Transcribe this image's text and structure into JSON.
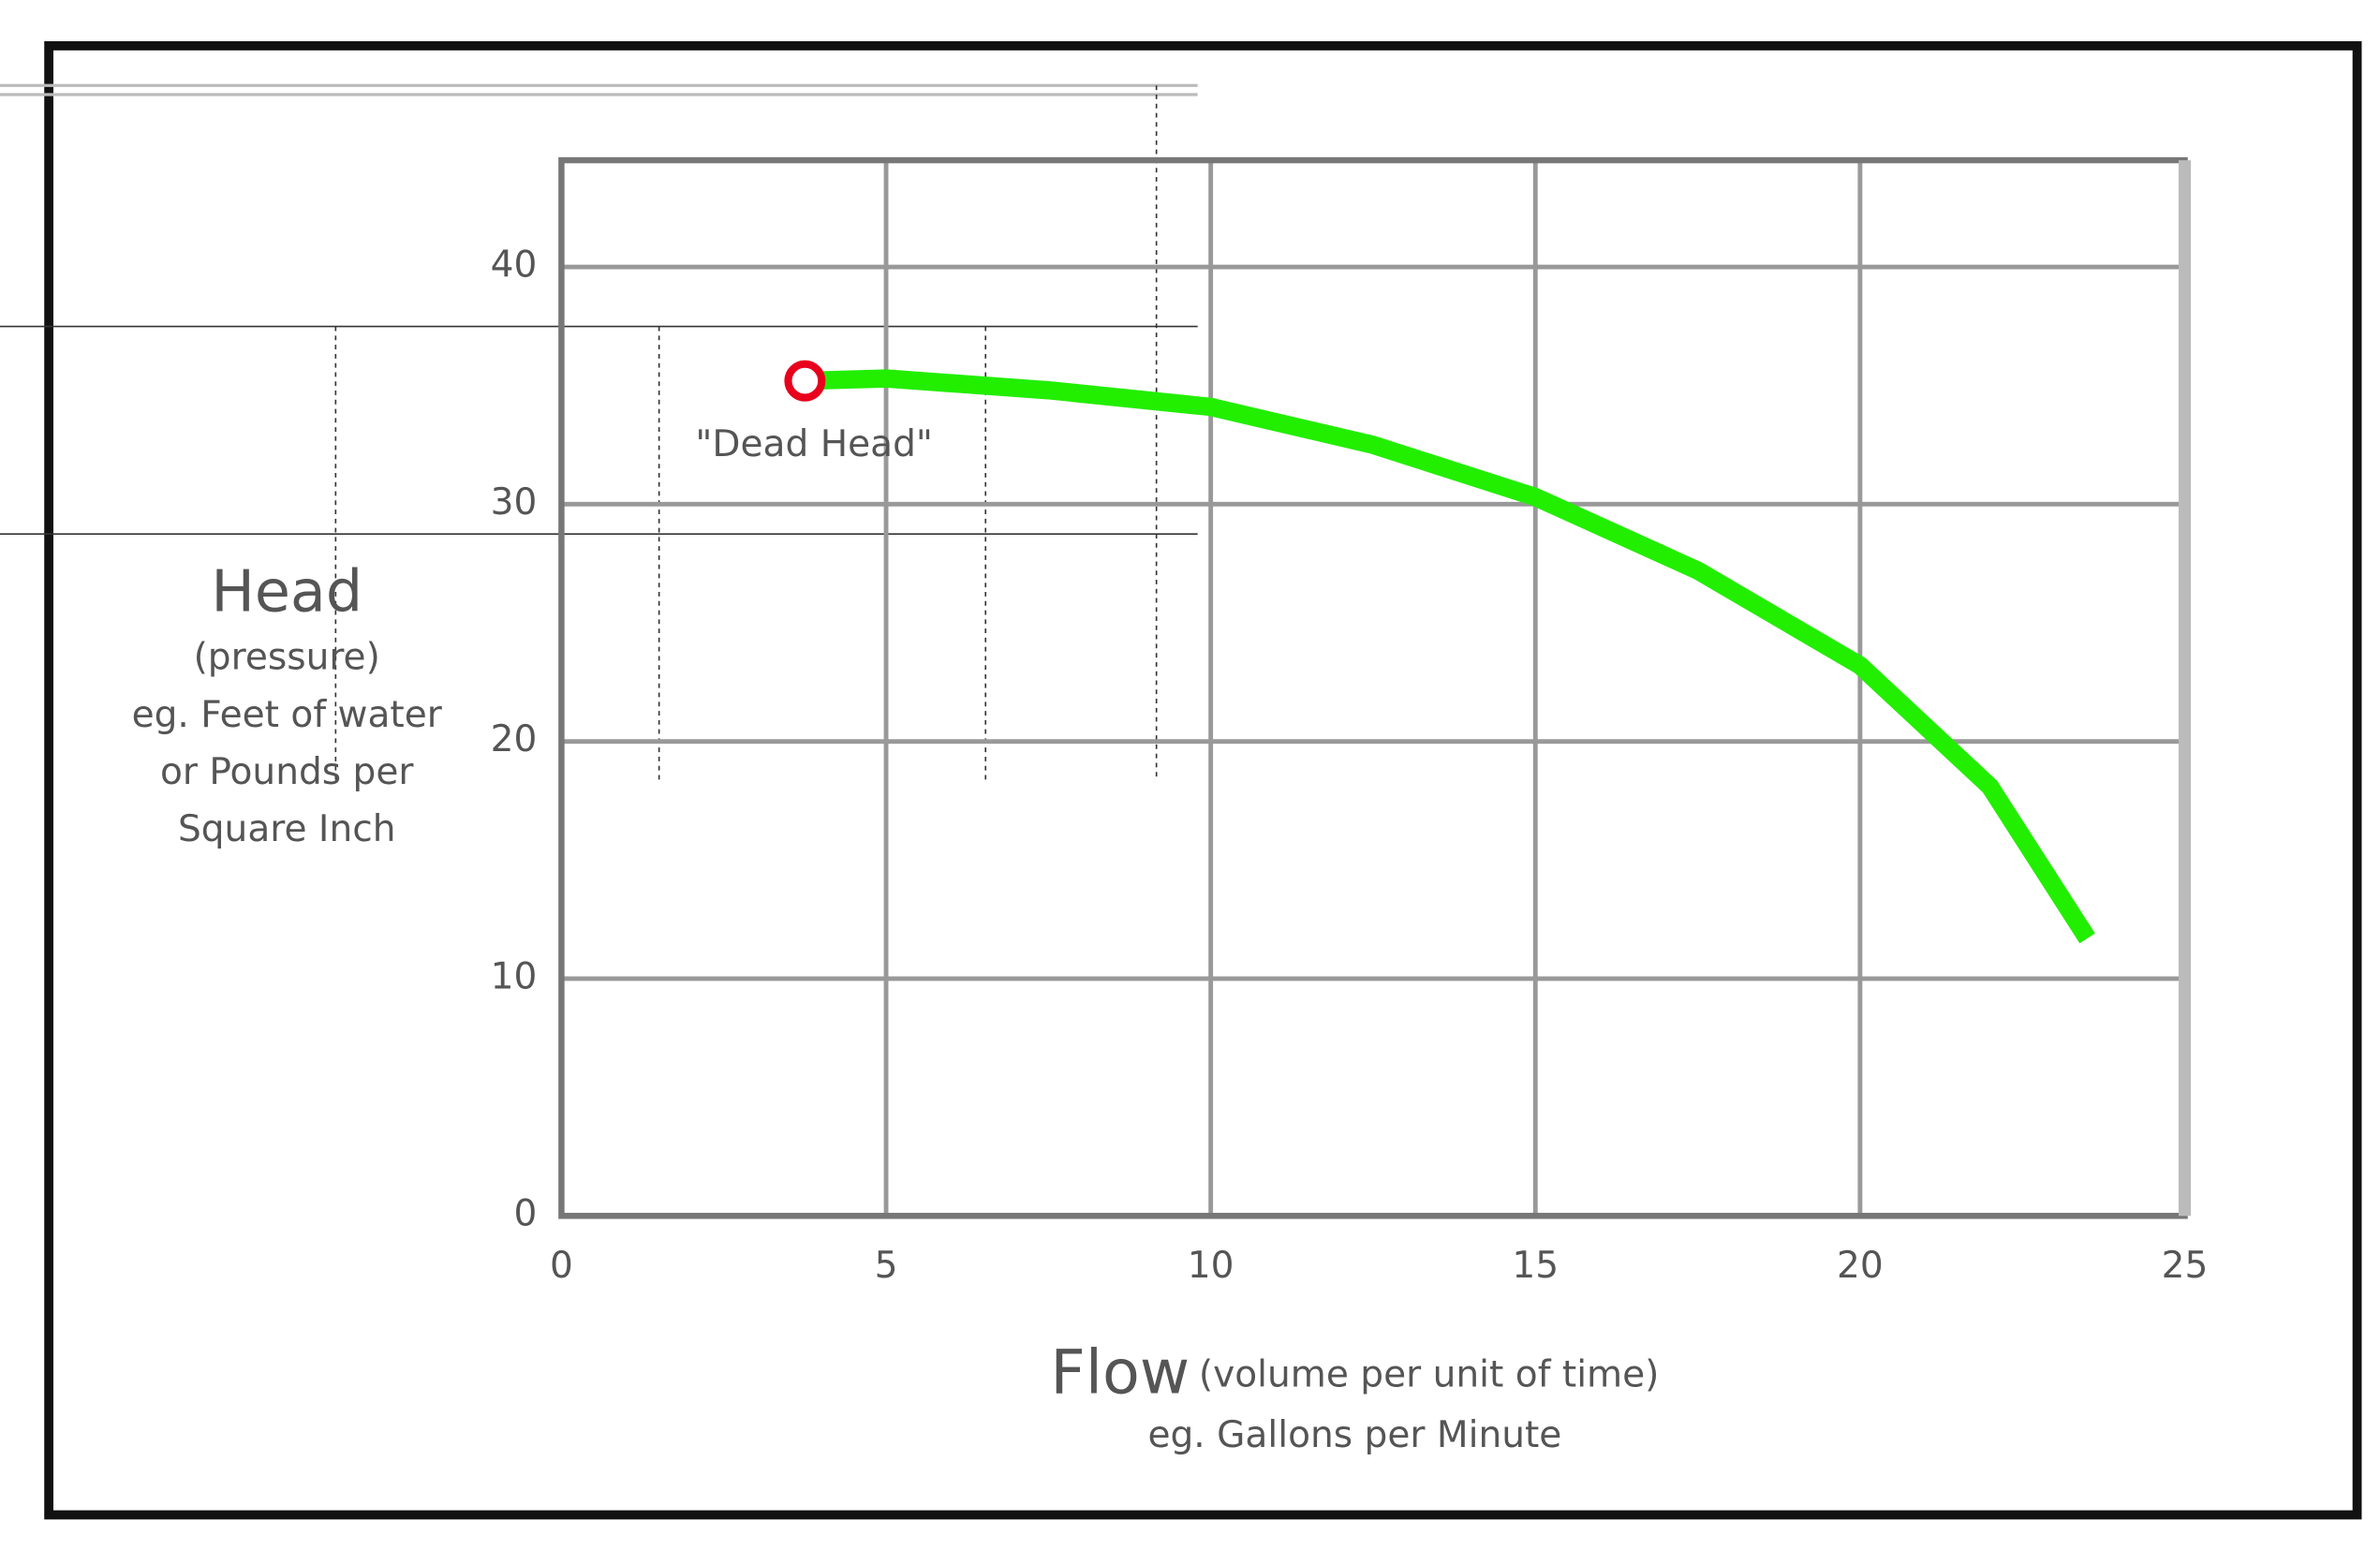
{
  "chart_data": {
    "type": "line",
    "x": [
      3.75,
      5,
      7.5,
      10,
      12.5,
      15,
      17.5,
      20,
      22,
      23.5
    ],
    "values": [
      35.2,
      35.3,
      34.8,
      34.1,
      32.5,
      30.3,
      27.2,
      23.2,
      18.1,
      11.7
    ],
    "color": "#22ee00",
    "xlim": [
      0,
      25
    ],
    "xticks": [
      0,
      5,
      10,
      15,
      20,
      25
    ],
    "ylim": [
      0,
      44.5
    ],
    "yticks": [
      0,
      10,
      20,
      30,
      40
    ],
    "grid": true,
    "annotation": {
      "text": "\"Dead Head\"",
      "x": 3.75,
      "y": 35.2,
      "color": "#e8001c"
    },
    "y_label": [
      "Head",
      "(pressure)",
      "eg. Feet of water",
      "or Pounds per",
      "Square Inch"
    ],
    "x_label": {
      "main": "Flow",
      "detail": "(volume per unit of time)",
      "note": "eg. Gallons per Minute"
    }
  }
}
